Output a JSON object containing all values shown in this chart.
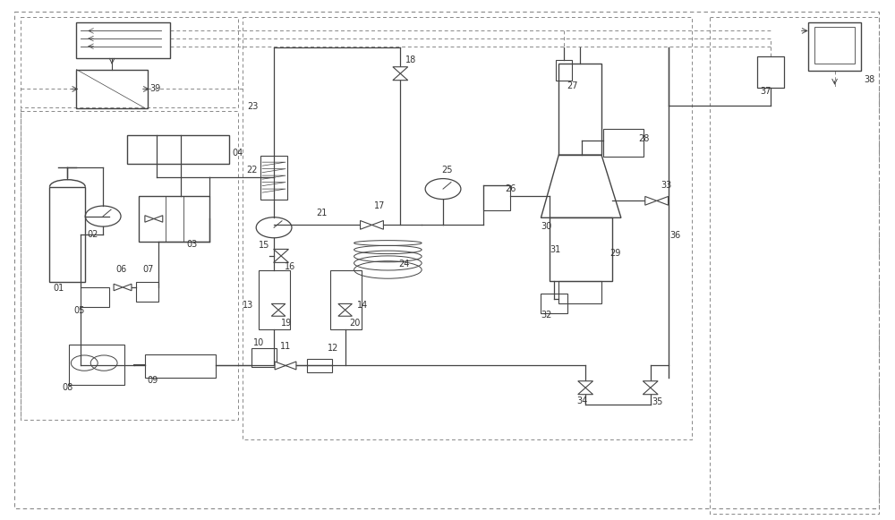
{
  "bg_color": "#ffffff",
  "line_color": "#444444",
  "dashed_color": "#888888",
  "fig_width": 10.0,
  "fig_height": 5.81
}
